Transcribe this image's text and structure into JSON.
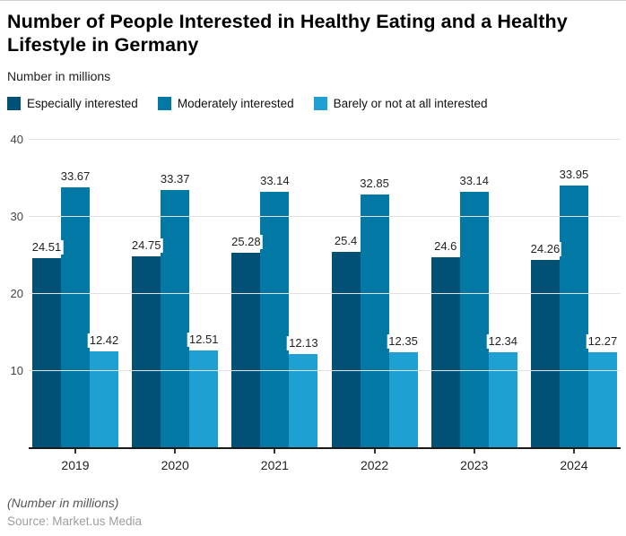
{
  "header": {
    "title": "Number of People Interested in Healthy Eating and a Healthy Lifestyle in Germany",
    "subtitle": "Number in millions"
  },
  "legend": {
    "items": [
      {
        "label": "Especially interested",
        "color": "#015177"
      },
      {
        "label": "Moderately interested",
        "color": "#0278A4"
      },
      {
        "label": "Barely or not at all interested",
        "color": "#1FA0D2"
      }
    ]
  },
  "chart_data": {
    "type": "bar",
    "title": "Number of People Interested in Healthy Eating and a Healthy Lifestyle in Germany",
    "categories": [
      "2019",
      "2020",
      "2021",
      "2022",
      "2023",
      "2024"
    ],
    "series": [
      {
        "name": "Especially interested",
        "color": "#015177",
        "values": [
          24.51,
          24.75,
          25.28,
          25.4,
          24.6,
          24.26
        ]
      },
      {
        "name": "Moderately interested",
        "color": "#0278A4",
        "values": [
          33.67,
          33.37,
          33.14,
          32.85,
          33.14,
          33.95
        ]
      },
      {
        "name": "Barely or not at all interested",
        "color": "#1FA0D2",
        "values": [
          12.42,
          12.51,
          12.13,
          12.35,
          12.34,
          12.27
        ]
      }
    ],
    "xlabel": "",
    "ylabel": "Number in millions",
    "ylim": [
      0,
      40
    ],
    "yticks": [
      10,
      20,
      30,
      40
    ],
    "grid": true,
    "legend_position": "top",
    "value_labels": true
  },
  "footer": {
    "note": "(Number in millions)",
    "source": "Source: Market.us Media"
  },
  "colors": {
    "grid": "#e2e2e2",
    "axis_line": "#1a1a1a",
    "axis_text": "#444444",
    "label_text": "#222222"
  }
}
